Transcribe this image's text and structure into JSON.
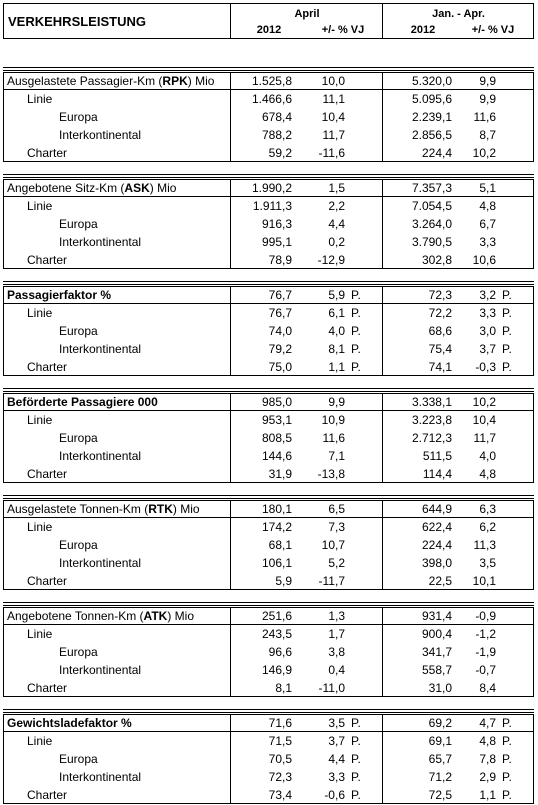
{
  "header": {
    "title": "VERKEHRSLEISTUNG",
    "period1": "April",
    "period2": "Jan. - Apr.",
    "year": "2012",
    "change": "+/- % VJ"
  },
  "sections": [
    {
      "pre": "Ausgelastete Passagier-Km (",
      "key": "RPK",
      "post": ") Mio",
      "allbold": false,
      "rows": [
        {
          "label": "",
          "v1": "1.525,8",
          "p1": "10,0",
          "u1": "",
          "v2": "5.320,0",
          "p2": "9,9",
          "u2": ""
        },
        {
          "label": "Linie",
          "level": 1,
          "v1": "1.466,6",
          "p1": "11,1",
          "u1": "",
          "v2": "5.095,6",
          "p2": "9,9",
          "u2": ""
        },
        {
          "label": "Europa",
          "level": 2,
          "v1": "678,4",
          "p1": "10,4",
          "u1": "",
          "v2": "2.239,1",
          "p2": "11,6",
          "u2": ""
        },
        {
          "label": "Interkontinental",
          "level": 2,
          "v1": "788,2",
          "p1": "11,7",
          "u1": "",
          "v2": "2.856,5",
          "p2": "8,7",
          "u2": ""
        },
        {
          "label": "Charter",
          "level": 1,
          "v1": "59,2",
          "p1": "-11,6",
          "u1": "",
          "v2": "224,4",
          "p2": "10,2",
          "u2": ""
        }
      ]
    },
    {
      "pre": "Angebotene Sitz-Km (",
      "key": "ASK",
      "post": ") Mio",
      "allbold": false,
      "rows": [
        {
          "label": "",
          "v1": "1.990,2",
          "p1": "1,5",
          "u1": "",
          "v2": "7.357,3",
          "p2": "5,1",
          "u2": ""
        },
        {
          "label": "Linie",
          "level": 1,
          "v1": "1.911,3",
          "p1": "2,2",
          "u1": "",
          "v2": "7.054,5",
          "p2": "4,8",
          "u2": ""
        },
        {
          "label": "Europa",
          "level": 2,
          "v1": "916,3",
          "p1": "4,4",
          "u1": "",
          "v2": "3.264,0",
          "p2": "6,7",
          "u2": ""
        },
        {
          "label": "Interkontinental",
          "level": 2,
          "v1": "995,1",
          "p1": "0,2",
          "u1": "",
          "v2": "3.790,5",
          "p2": "3,3",
          "u2": ""
        },
        {
          "label": "Charter",
          "level": 1,
          "v1": "78,9",
          "p1": "-12,9",
          "u1": "",
          "v2": "302,8",
          "p2": "10,6",
          "u2": ""
        }
      ]
    },
    {
      "pre": "Passagierfaktor %",
      "key": "",
      "post": "",
      "allbold": true,
      "rows": [
        {
          "label": "",
          "v1": "76,7",
          "p1": "5,9",
          "u1": "P.",
          "v2": "72,3",
          "p2": "3,2",
          "u2": "P."
        },
        {
          "label": "Linie",
          "level": 1,
          "v1": "76,7",
          "p1": "6,1",
          "u1": "P.",
          "v2": "72,2",
          "p2": "3,3",
          "u2": "P."
        },
        {
          "label": "Europa",
          "level": 2,
          "v1": "74,0",
          "p1": "4,0",
          "u1": "P.",
          "v2": "68,6",
          "p2": "3,0",
          "u2": "P."
        },
        {
          "label": "Interkontinental",
          "level": 2,
          "v1": "79,2",
          "p1": "8,1",
          "u1": "P.",
          "v2": "75,4",
          "p2": "3,7",
          "u2": "P."
        },
        {
          "label": "Charter",
          "level": 1,
          "v1": "75,0",
          "p1": "1,1",
          "u1": "P.",
          "v2": "74,1",
          "p2": "-0,3",
          "u2": "P."
        }
      ]
    },
    {
      "pre": "Beförderte Passagiere 000",
      "key": "",
      "post": "",
      "allbold": true,
      "rows": [
        {
          "label": "",
          "v1": "985,0",
          "p1": "9,9",
          "u1": "",
          "v2": "3.338,1",
          "p2": "10,2",
          "u2": ""
        },
        {
          "label": "Linie",
          "level": 1,
          "v1": "953,1",
          "p1": "10,9",
          "u1": "",
          "v2": "3.223,8",
          "p2": "10,4",
          "u2": ""
        },
        {
          "label": "Europa",
          "level": 2,
          "v1": "808,5",
          "p1": "11,6",
          "u1": "",
          "v2": "2.712,3",
          "p2": "11,7",
          "u2": ""
        },
        {
          "label": "Interkontinental",
          "level": 2,
          "v1": "144,6",
          "p1": "7,1",
          "u1": "",
          "v2": "511,5",
          "p2": "4,0",
          "u2": ""
        },
        {
          "label": "Charter",
          "level": 1,
          "v1": "31,9",
          "p1": "-13,8",
          "u1": "",
          "v2": "114,4",
          "p2": "4,8",
          "u2": ""
        }
      ]
    },
    {
      "pre": "Ausgelastete Tonnen-Km (",
      "key": "RTK",
      "post": ") Mio",
      "allbold": false,
      "rows": [
        {
          "label": "",
          "v1": "180,1",
          "p1": "6,5",
          "u1": "",
          "v2": "644,9",
          "p2": "6,3",
          "u2": ""
        },
        {
          "label": "Linie",
          "level": 1,
          "v1": "174,2",
          "p1": "7,3",
          "u1": "",
          "v2": "622,4",
          "p2": "6,2",
          "u2": ""
        },
        {
          "label": "Europa",
          "level": 2,
          "v1": "68,1",
          "p1": "10,7",
          "u1": "",
          "v2": "224,4",
          "p2": "11,3",
          "u2": ""
        },
        {
          "label": "Interkontinental",
          "level": 2,
          "v1": "106,1",
          "p1": "5,2",
          "u1": "",
          "v2": "398,0",
          "p2": "3,5",
          "u2": ""
        },
        {
          "label": "Charter",
          "level": 1,
          "v1": "5,9",
          "p1": "-11,7",
          "u1": "",
          "v2": "22,5",
          "p2": "10,1",
          "u2": ""
        }
      ]
    },
    {
      "pre": "Angebotene Tonnen-Km (",
      "key": "ATK",
      "post": ") Mio",
      "allbold": false,
      "rows": [
        {
          "label": "",
          "v1": "251,6",
          "p1": "1,3",
          "u1": "",
          "v2": "931,4",
          "p2": "-0,9",
          "u2": ""
        },
        {
          "label": "Linie",
          "level": 1,
          "v1": "243,5",
          "p1": "1,7",
          "u1": "",
          "v2": "900,4",
          "p2": "-1,2",
          "u2": ""
        },
        {
          "label": "Europa",
          "level": 2,
          "v1": "96,6",
          "p1": "3,8",
          "u1": "",
          "v2": "341,7",
          "p2": "-1,9",
          "u2": ""
        },
        {
          "label": "Interkontinental",
          "level": 2,
          "v1": "146,9",
          "p1": "0,4",
          "u1": "",
          "v2": "558,7",
          "p2": "-0,7",
          "u2": ""
        },
        {
          "label": "Charter",
          "level": 1,
          "v1": "8,1",
          "p1": "-11,0",
          "u1": "",
          "v2": "31,0",
          "p2": "8,4",
          "u2": ""
        }
      ]
    },
    {
      "pre": "Gewichtsladefaktor %",
      "key": "",
      "post": "",
      "allbold": true,
      "rows": [
        {
          "label": "",
          "v1": "71,6",
          "p1": "3,5",
          "u1": "P.",
          "v2": "69,2",
          "p2": "4,7",
          "u2": "P."
        },
        {
          "label": "Linie",
          "level": 1,
          "v1": "71,5",
          "p1": "3,7",
          "u1": "P.",
          "v2": "69,1",
          "p2": "4,8",
          "u2": "P."
        },
        {
          "label": "Europa",
          "level": 2,
          "v1": "70,5",
          "p1": "4,4",
          "u1": "P.",
          "v2": "65,7",
          "p2": "7,8",
          "u2": "P."
        },
        {
          "label": "Interkontinental",
          "level": 2,
          "v1": "72,3",
          "p1": "3,3",
          "u1": "P.",
          "v2": "71,2",
          "p2": "2,9",
          "u2": "P."
        },
        {
          "label": "Charter",
          "level": 1,
          "v1": "73,4",
          "p1": "-0,6",
          "u1": "P.",
          "v2": "72,5",
          "p2": "1,1",
          "u2": "P."
        }
      ]
    }
  ]
}
